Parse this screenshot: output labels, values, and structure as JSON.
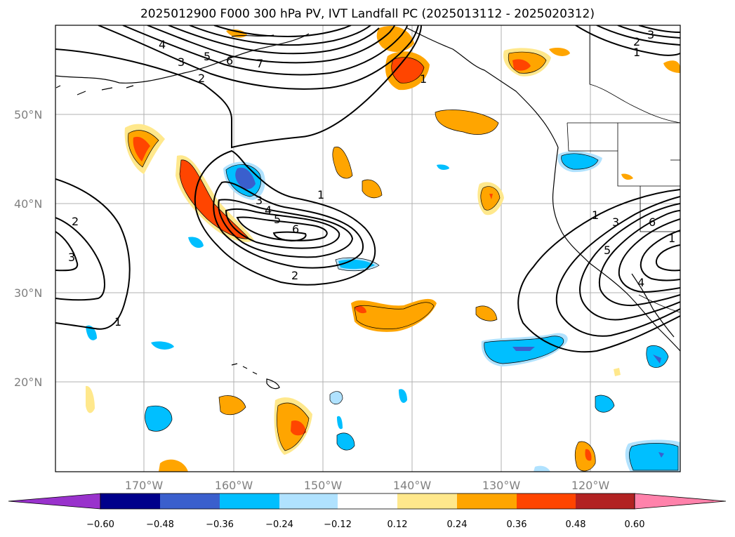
{
  "title": "2025012900 F000 300 hPa PV, IVT Landfall PC (2025013112 - 2025020312)",
  "lat_labels": [
    "50°N",
    "40°N",
    "30°N",
    "20°N"
  ],
  "lon_labels": [
    "170°W",
    "160°W",
    "150°W",
    "140°W",
    "130°W",
    "120°W"
  ],
  "colorbar": {
    "tick_labels": [
      "−0.60",
      "−0.48",
      "−0.36",
      "−0.24",
      "−0.12",
      "0.12",
      "0.24",
      "0.36",
      "0.48",
      "0.60"
    ],
    "colors": [
      "#9932cc",
      "#00008b",
      "#3a5fcd",
      "#00bfff",
      "#b0e2ff",
      "#ffffff",
      "#ffe88c",
      "#ffa500",
      "#ff4500",
      "#b22222",
      "#ff82ab"
    ]
  },
  "contour_labels": {
    "nw": [
      "4",
      "3",
      "2",
      "5",
      "6",
      "7"
    ],
    "ne": [
      "2",
      "3",
      "1",
      "1"
    ],
    "center": [
      "1",
      "3",
      "4",
      "5",
      "6",
      "2"
    ],
    "west": [
      "2",
      "3",
      "1"
    ],
    "east": [
      "1",
      "3",
      "6",
      "5",
      "4",
      "1"
    ]
  }
}
